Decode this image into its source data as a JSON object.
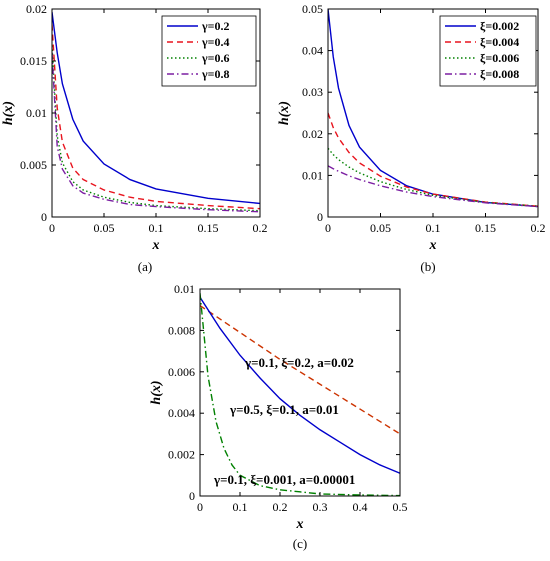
{
  "chart_data": [
    {
      "type": "line",
      "caption": "(a)",
      "xlabel": "x",
      "ylabel": "h(x)",
      "xlim": [
        0,
        0.2
      ],
      "ylim": [
        0,
        0.02
      ],
      "x_ticks": [
        0,
        0.05,
        0.1,
        0.15,
        0.2
      ],
      "x_tick_labels": [
        "0",
        "0.05",
        "0.1",
        "0.15",
        "0.2"
      ],
      "y_ticks": [
        0,
        0.005,
        0.01,
        0.015,
        0.02
      ],
      "y_tick_labels": [
        "0",
        "0.005",
        "0.01",
        "0.015",
        "0.02"
      ],
      "legend_position": "top-right",
      "series": [
        {
          "name": "γ=0.2",
          "color": "#0000CC",
          "dash": "solid",
          "x": [
            0,
            0.005,
            0.01,
            0.02,
            0.03,
            0.05,
            0.075,
            0.1,
            0.15,
            0.2
          ],
          "y": [
            0.0197,
            0.0158,
            0.0128,
            0.0094,
            0.0073,
            0.0051,
            0.0036,
            0.0027,
            0.0018,
            0.0013
          ]
        },
        {
          "name": "γ=0.4",
          "color": "#E8141E",
          "dash": "dash",
          "x": [
            0,
            0.005,
            0.01,
            0.02,
            0.03,
            0.05,
            0.075,
            0.1,
            0.15,
            0.2
          ],
          "y": [
            0.0185,
            0.0105,
            0.0072,
            0.0047,
            0.0036,
            0.0026,
            0.0019,
            0.0015,
            0.0011,
            0.0008
          ]
        },
        {
          "name": "γ=0.6",
          "color": "#008000",
          "dash": "dot",
          "x": [
            0,
            0.005,
            0.01,
            0.02,
            0.03,
            0.05,
            0.075,
            0.1,
            0.15,
            0.2
          ],
          "y": [
            0.0165,
            0.0078,
            0.0052,
            0.0034,
            0.0026,
            0.0019,
            0.0014,
            0.0011,
            0.0008,
            0.0006
          ]
        },
        {
          "name": "γ=0.8",
          "color": "#7B1FA2",
          "dash": "dashdot",
          "x": [
            0,
            0.005,
            0.01,
            0.02,
            0.03,
            0.05,
            0.075,
            0.1,
            0.15,
            0.2
          ],
          "y": [
            0.0158,
            0.0068,
            0.0046,
            0.003,
            0.0023,
            0.0017,
            0.0012,
            0.001,
            0.0007,
            0.0005
          ]
        }
      ]
    },
    {
      "type": "line",
      "caption": "(b)",
      "xlabel": "x",
      "ylabel": "h(x)",
      "xlim": [
        0,
        0.2
      ],
      "ylim": [
        0,
        0.05
      ],
      "x_ticks": [
        0,
        0.05,
        0.1,
        0.15,
        0.2
      ],
      "x_tick_labels": [
        "0",
        "0.05",
        "0.1",
        "0.15",
        "0.2"
      ],
      "y_ticks": [
        0,
        0.01,
        0.02,
        0.03,
        0.04,
        0.05
      ],
      "y_tick_labels": [
        "0",
        "0.01",
        "0.02",
        "0.03",
        "0.04",
        "0.05"
      ],
      "legend_position": "top-right",
      "series": [
        {
          "name": "ξ=0.002",
          "color": "#0000CC",
          "dash": "solid",
          "x": [
            0,
            0.005,
            0.01,
            0.02,
            0.03,
            0.05,
            0.075,
            0.1,
            0.15,
            0.2
          ],
          "y": [
            0.05,
            0.0385,
            0.031,
            0.022,
            0.0168,
            0.0112,
            0.0075,
            0.0055,
            0.0035,
            0.0025
          ]
        },
        {
          "name": "ξ=0.004",
          "color": "#E8141E",
          "dash": "dash",
          "x": [
            0,
            0.005,
            0.01,
            0.02,
            0.03,
            0.05,
            0.075,
            0.1,
            0.15,
            0.2
          ],
          "y": [
            0.025,
            0.0215,
            0.019,
            0.0155,
            0.013,
            0.0098,
            0.0072,
            0.0055,
            0.0036,
            0.0026
          ]
        },
        {
          "name": "ξ=0.006",
          "color": "#008000",
          "dash": "dot",
          "x": [
            0,
            0.005,
            0.01,
            0.02,
            0.03,
            0.05,
            0.075,
            0.1,
            0.15,
            0.2
          ],
          "y": [
            0.0165,
            0.015,
            0.0138,
            0.012,
            0.0106,
            0.0085,
            0.0066,
            0.0052,
            0.0035,
            0.0026
          ]
        },
        {
          "name": "ξ=0.008",
          "color": "#7B1FA2",
          "dash": "dashdot",
          "x": [
            0,
            0.005,
            0.01,
            0.02,
            0.03,
            0.05,
            0.075,
            0.1,
            0.15,
            0.2
          ],
          "y": [
            0.0123,
            0.0116,
            0.011,
            0.0099,
            0.009,
            0.0075,
            0.006,
            0.0049,
            0.0034,
            0.0025
          ]
        }
      ]
    },
    {
      "type": "line",
      "caption": "(c)",
      "xlabel": "x",
      "ylabel": "h(x)",
      "xlim": [
        0,
        0.5
      ],
      "ylim": [
        0,
        0.01
      ],
      "x_ticks": [
        0,
        0.1,
        0.2,
        0.3,
        0.4,
        0.5
      ],
      "x_tick_labels": [
        "0",
        "0.1",
        "0.2",
        "0.3",
        "0.4",
        "0.5"
      ],
      "y_ticks": [
        0,
        0.002,
        0.004,
        0.006,
        0.008,
        0.01
      ],
      "y_tick_labels": [
        "0",
        "0.002",
        "0.004",
        "0.006",
        "0.008",
        "0.01"
      ],
      "annotations": [
        "γ=0.1, ξ=0.2, a=0.02",
        "γ=0.5, ξ=0.1, a=0.01",
        "γ=0.1, ξ=0.001, a=0.00001"
      ],
      "series": [
        {
          "color": "#CC3300",
          "dash": "dash",
          "x": [
            0,
            0.1,
            0.2,
            0.3,
            0.4,
            0.5
          ],
          "y": [
            0.0092,
            0.0079,
            0.0066,
            0.0054,
            0.0042,
            0.003
          ]
        },
        {
          "color": "#0000CC",
          "dash": "solid",
          "x": [
            0,
            0.05,
            0.1,
            0.15,
            0.2,
            0.25,
            0.3,
            0.35,
            0.4,
            0.45,
            0.5
          ],
          "y": [
            0.0096,
            0.0081,
            0.0068,
            0.0057,
            0.0047,
            0.0039,
            0.0032,
            0.0026,
            0.002,
            0.0015,
            0.0011
          ]
        },
        {
          "color": "#008000",
          "dash": "dashdot",
          "x": [
            0,
            0.02,
            0.04,
            0.06,
            0.08,
            0.1,
            0.15,
            0.2,
            0.25,
            0.3,
            0.4,
            0.5
          ],
          "y": [
            0.0098,
            0.0058,
            0.0036,
            0.0023,
            0.0015,
            0.001,
            0.0005,
            0.0003,
            0.0002,
            0.0001,
            5e-05,
            2e-05
          ]
        }
      ]
    }
  ]
}
